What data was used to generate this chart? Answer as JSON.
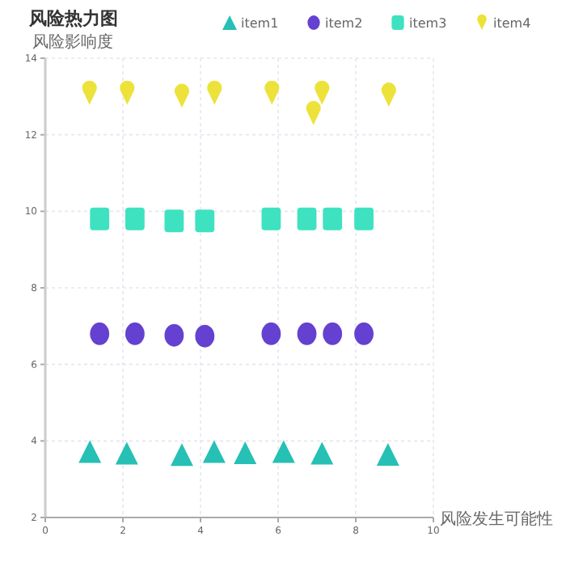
{
  "chart_data": {
    "type": "scatter",
    "title": "风险热力图",
    "ylabel": "风险影响度",
    "xlabel": "风险发生可能性",
    "xlim": [
      0,
      10
    ],
    "xticks": [
      0,
      2,
      4,
      6,
      8,
      10
    ],
    "ylim": [
      2,
      14
    ],
    "yticks": [
      2,
      4,
      6,
      8,
      10,
      12,
      14
    ],
    "grid": true,
    "legend": "top right",
    "series": [
      {
        "name": "item1",
        "color": "#26c0b5",
        "marker": "triangle",
        "x": [
          1.15,
          2.1,
          3.52,
          4.35,
          5.15,
          6.14,
          7.13,
          8.83
        ],
        "values": [
          3.72,
          3.68,
          3.64,
          3.72,
          3.69,
          3.72,
          3.68,
          3.65
        ]
      },
      {
        "name": "item2",
        "color": "#6441d0",
        "marker": "circle",
        "x": [
          1.4,
          2.31,
          3.32,
          4.11,
          5.82,
          6.74,
          7.4,
          8.21
        ],
        "values": [
          6.8,
          6.8,
          6.76,
          6.74,
          6.8,
          6.8,
          6.8,
          6.8
        ]
      },
      {
        "name": "item3",
        "color": "#3ee2c0",
        "marker": "square",
        "x": [
          1.4,
          2.31,
          3.32,
          4.11,
          5.82,
          6.74,
          7.4,
          8.21
        ],
        "values": [
          9.8,
          9.8,
          9.75,
          9.75,
          9.8,
          9.8,
          9.8,
          9.8
        ]
      },
      {
        "name": "item4",
        "color": "#ede23a",
        "x": [
          1.14,
          2.11,
          3.52,
          4.36,
          5.84,
          6.91,
          7.13,
          8.85
        ],
        "values": [
          13.08,
          13.08,
          13.0,
          13.08,
          13.08,
          12.55,
          13.08,
          13.03
        ]
      }
    ]
  }
}
